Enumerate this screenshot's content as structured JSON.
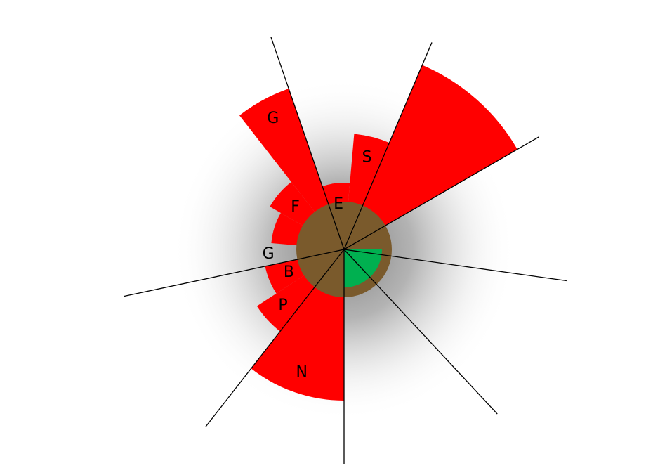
{
  "chart_data": {
    "type": "polar-area",
    "title": "",
    "colors": {
      "bar": "#ff0000",
      "core": "#7a5a2c",
      "inner_sector": "#00b050",
      "spokes": "#000000",
      "labels": "#000000",
      "halo": "#808080"
    },
    "sectors": [
      {
        "label": "S",
        "start_deg": 5,
        "end_deg": 23,
        "value": 165
      },
      {
        "label": "",
        "start_deg": 23,
        "end_deg": 60,
        "value": 285
      },
      {
        "label": "",
        "start_deg": 60,
        "end_deg": 98,
        "value": 0
      },
      {
        "label": "",
        "start_deg": 98,
        "end_deg": 137,
        "value": 0
      },
      {
        "label": "",
        "start_deg": 137,
        "end_deg": 180,
        "value": 0
      },
      {
        "label": "N",
        "start_deg": 180,
        "end_deg": 218,
        "value": 215
      },
      {
        "label": "P",
        "start_deg": 218,
        "end_deg": 237,
        "value": 148
      },
      {
        "label": "B",
        "start_deg": 237,
        "end_deg": 258,
        "value": 115
      },
      {
        "label": "G",
        "start_deg": 258,
        "end_deg": 275,
        "value": 0
      },
      {
        "label": "",
        "start_deg": 275,
        "end_deg": 300,
        "value": 104
      },
      {
        "label": "F",
        "start_deg": 300,
        "end_deg": 322,
        "value": 122
      },
      {
        "label": "G",
        "start_deg": 322,
        "end_deg": 341,
        "value": 242
      },
      {
        "label": "E",
        "start_deg": 341,
        "end_deg": 365,
        "value": 95
      }
    ],
    "core": {
      "value": 68
    },
    "inner": {
      "label": "",
      "start_deg": 90,
      "end_deg": 180,
      "value": 54
    },
    "spokes_deg": [
      23,
      60,
      98,
      137,
      180,
      218,
      258,
      341
    ]
  }
}
